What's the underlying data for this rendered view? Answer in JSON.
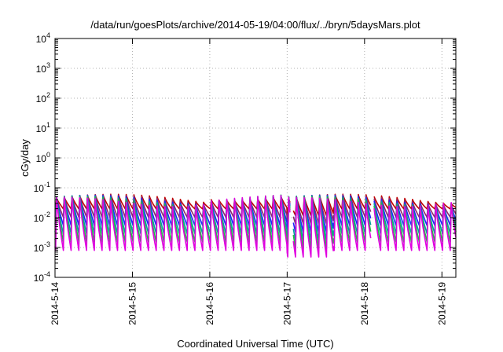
{
  "chart_data": {
    "type": "line",
    "title": "/data/run/goesPlots/archive/2014-05-19/04:00/flux/../bryn/5daysMars.plot",
    "xlabel": "Coordinated Universal Time (UTC)",
    "ylabel": "cGy/day",
    "yscale": "log",
    "ylim_exponents": [
      -4,
      4
    ],
    "ytick_base": "10",
    "yticks": [
      -4,
      -3,
      -2,
      -1,
      0,
      1,
      2,
      3,
      4
    ],
    "xlim_days": [
      0,
      5.18
    ],
    "xticks": [
      {
        "day": 0,
        "label": "2014-5-14"
      },
      {
        "day": 1,
        "label": "2014-5-15"
      },
      {
        "day": 2,
        "label": "2014-5-16"
      },
      {
        "day": 3,
        "label": "2014-5-17"
      },
      {
        "day": 4,
        "label": "2014-5-18"
      },
      {
        "day": 5,
        "label": "2014-5-19"
      }
    ],
    "grid": true,
    "series_colors": [
      "#c00000",
      "#8b2a6b",
      "#2020ff",
      "#00a0a0",
      "#20c040",
      "#e000e0"
    ],
    "peak_period_days": 0.1,
    "peak_level_cgy_day": 0.045,
    "trough_level_cgy_day": 0.0008,
    "gaps_days": [
      {
        "start": 3.04,
        "end": 3.08
      },
      {
        "start": 4.08,
        "end": 4.12
      }
    ]
  }
}
